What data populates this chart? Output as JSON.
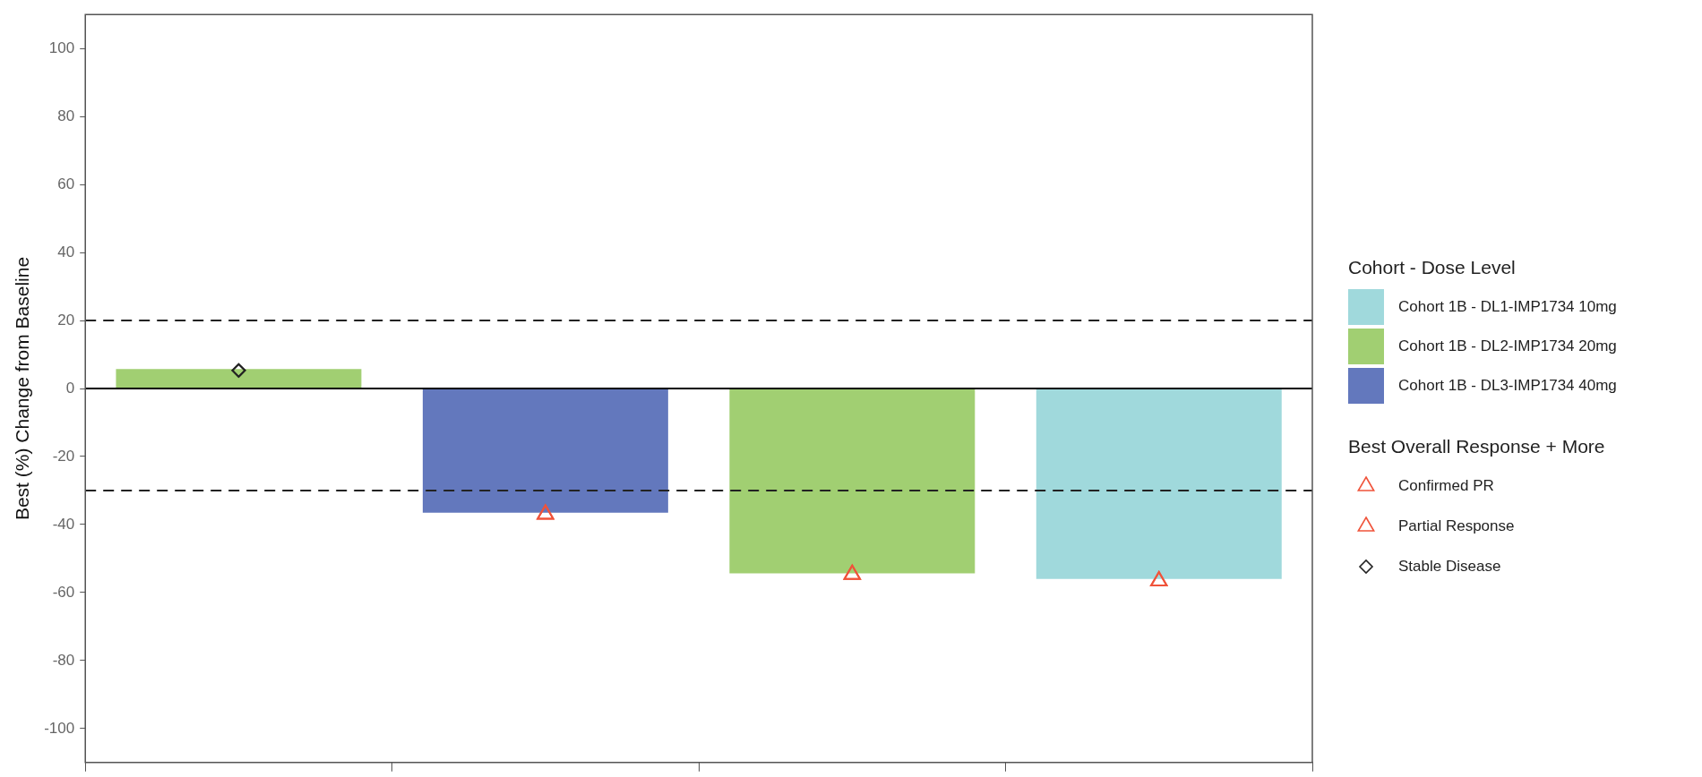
{
  "chart_data": {
    "type": "bar",
    "ylabel": "Best (%) Change from Baseline",
    "legend_title": [
      "Cohort - Dose Level",
      "Best Overall Response + More"
    ],
    "categories": [
      null,
      null,
      null,
      null
    ],
    "stacked": true,
    "series": [
      {
        "name": "Cohort 1B - DL1-IMP1734 10mg",
        "color": "#a0d9dc",
        "values": [
          null,
          null,
          null,
          -56
        ]
      },
      {
        "name": "Cohort 1B - DL2-IMP1734 20mg",
        "color": "#a1cf72",
        "values": [
          5.7,
          null,
          -54.4,
          null
        ]
      },
      {
        "name": "Cohort 1B - DL3-IMP1734 40mg",
        "color": "#6378bd",
        "values": [
          null,
          -36.5,
          null,
          null
        ]
      },
      {
        "type": "scatter",
        "name": "Confirmed PR",
        "color": "#f0533a",
        "marker": "triangle",
        "values": [
          null,
          null,
          -54.7,
          -56.6
        ]
      },
      {
        "type": "scatter",
        "name": "Partial Response",
        "color": "#f0533a",
        "marker": "triangle",
        "values": [
          null,
          -37,
          null,
          null
        ]
      },
      {
        "type": "scatter",
        "name": "Stable Disease",
        "color": "#222222",
        "marker": "diamond",
        "values": [
          5.3,
          null,
          null,
          null
        ]
      }
    ],
    "ylim": [
      -110,
      110
    ],
    "yticks": [
      -100,
      -80,
      -60,
      -40,
      -20,
      0,
      20,
      40,
      60,
      80,
      100
    ],
    "ref_lines": [
      {
        "axis": "y",
        "value": 20,
        "line_style": "dashed",
        "color": "#222222"
      },
      {
        "axis": "y",
        "value": 0,
        "line_style": "solid",
        "color": "#000000"
      },
      {
        "axis": "y",
        "value": -30,
        "line_style": "dashed",
        "color": "#222222"
      }
    ],
    "grid": false,
    "legend": "right",
    "tick_labels": "y"
  }
}
